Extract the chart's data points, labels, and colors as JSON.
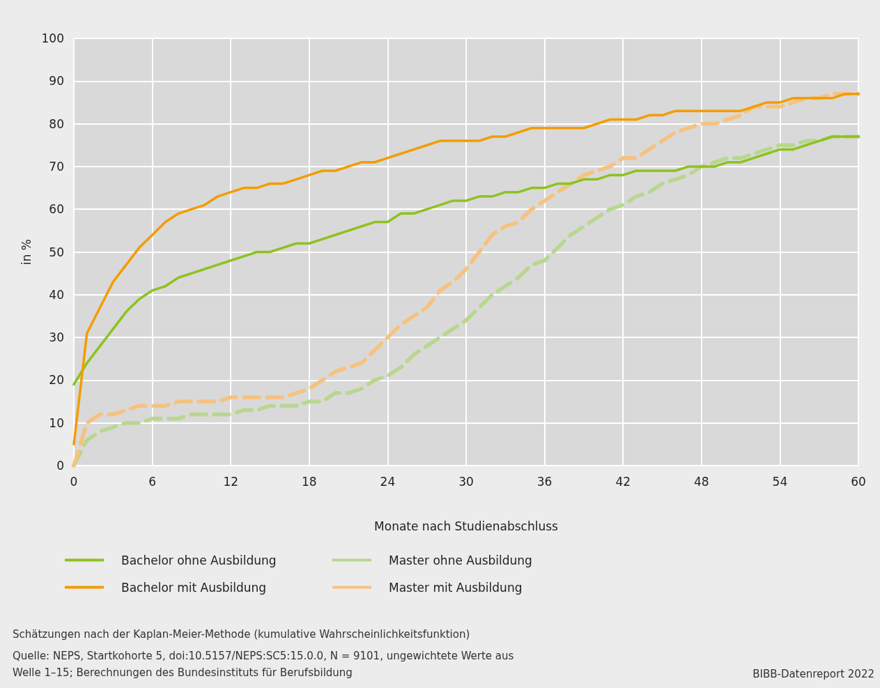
{
  "chart_data": {
    "type": "line",
    "xlabel": "Monate nach Studienabschluss",
    "ylabel": "in %",
    "x": [
      0,
      1,
      2,
      3,
      4,
      5,
      6,
      7,
      8,
      9,
      10,
      11,
      12,
      13,
      14,
      15,
      16,
      17,
      18,
      19,
      20,
      21,
      22,
      23,
      24,
      25,
      26,
      27,
      28,
      29,
      30,
      31,
      32,
      33,
      34,
      35,
      36,
      37,
      38,
      39,
      40,
      41,
      42,
      43,
      44,
      45,
      46,
      47,
      48,
      49,
      50,
      51,
      52,
      53,
      54,
      55,
      56,
      57,
      58,
      59,
      60
    ],
    "series": [
      {
        "name": "Bachelor ohne Ausbildung",
        "color": "#8dc21f",
        "line_style": "solid",
        "values": [
          19,
          24,
          28,
          32,
          36,
          39,
          41,
          42,
          44,
          45,
          46,
          47,
          48,
          49,
          50,
          50,
          51,
          52,
          52,
          53,
          54,
          55,
          56,
          57,
          57,
          59,
          59,
          60,
          61,
          62,
          62,
          63,
          63,
          64,
          64,
          65,
          65,
          66,
          66,
          67,
          67,
          68,
          68,
          69,
          69,
          69,
          69,
          70,
          70,
          70,
          71,
          71,
          72,
          73,
          74,
          74,
          75,
          76,
          77,
          77,
          77
        ]
      },
      {
        "name": "Master ohne Ausbildung",
        "color": "#b9d78f",
        "line_style": "dashed",
        "values": [
          0,
          6,
          8,
          9,
          10,
          10,
          11,
          11,
          11,
          12,
          12,
          12,
          12,
          13,
          13,
          14,
          14,
          14,
          15,
          15,
          17,
          17,
          18,
          20,
          21,
          23,
          26,
          28,
          30,
          32,
          34,
          37,
          40,
          42,
          44,
          47,
          48,
          51,
          54,
          56,
          58,
          60,
          61,
          63,
          64,
          66,
          67,
          68,
          70,
          71,
          72,
          72,
          73,
          74,
          75,
          75,
          76,
          76,
          77,
          77,
          77
        ]
      },
      {
        "name": "Bachelor mit Ausbildung",
        "color": "#f39c00",
        "line_style": "solid",
        "values": [
          5,
          31,
          37,
          43,
          47,
          51,
          54,
          57,
          59,
          60,
          61,
          63,
          64,
          65,
          65,
          66,
          66,
          67,
          68,
          69,
          69,
          70,
          71,
          71,
          72,
          73,
          74,
          75,
          76,
          76,
          76,
          76,
          77,
          77,
          78,
          79,
          79,
          79,
          79,
          79,
          80,
          81,
          81,
          81,
          82,
          82,
          83,
          83,
          83,
          83,
          83,
          83,
          84,
          85,
          85,
          86,
          86,
          86,
          86,
          87,
          87
        ]
      },
      {
        "name": "Master mit Ausbildung",
        "color": "#f6c27f",
        "line_style": "dashed",
        "values": [
          0,
          10,
          12,
          12,
          13,
          14,
          14,
          14,
          15,
          15,
          15,
          15,
          16,
          16,
          16,
          16,
          16,
          17,
          18,
          20,
          22,
          23,
          24,
          27,
          30,
          33,
          35,
          37,
          41,
          43,
          46,
          50,
          54,
          56,
          57,
          60,
          62,
          64,
          66,
          68,
          69,
          70,
          72,
          72,
          74,
          76,
          78,
          79,
          80,
          80,
          81,
          82,
          84,
          84,
          84,
          85,
          86,
          86,
          87,
          87,
          87
        ]
      }
    ],
    "xlim": [
      0,
      60
    ],
    "xticks": [
      0,
      6,
      12,
      18,
      24,
      30,
      36,
      42,
      48,
      54,
      60
    ],
    "ylim": [
      0,
      100
    ],
    "yticks": [
      0,
      10,
      20,
      30,
      40,
      50,
      60,
      70,
      80,
      90,
      100
    ],
    "grid": true,
    "legend": "bottom",
    "marker": "none",
    "annotations": [
      "Schätzungen nach der Kaplan-Meier-Methode (kumulative Wahrscheinlichkeitsfunktion)",
      "Quelle: NEPS, Startkohorte 5, doi:10.5157/NEPS:SC5:15.0.0, N = 9101, ungewichtete Werte aus Welle 1–15; Berechnungen des Bundesinstituts für Berufsbildung",
      "BIBB-Datenreport 2022"
    ]
  }
}
